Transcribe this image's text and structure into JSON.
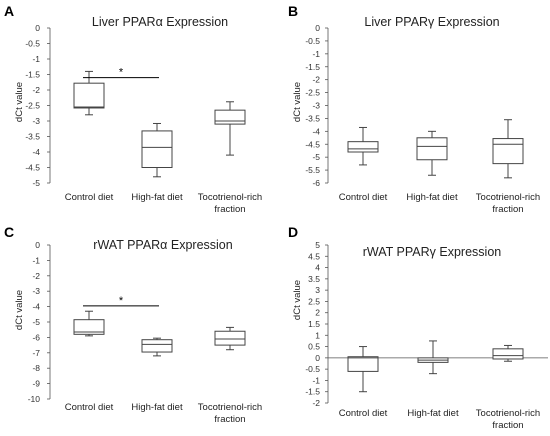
{
  "chart_data": [
    {
      "type": "box",
      "panel_label": "A",
      "title": "Liver PPARα Expression",
      "ylabel": "dCt value",
      "ylim": [
        -5,
        0
      ],
      "yticks": [
        "0",
        "-0.5",
        "-1",
        "-1.5",
        "-2",
        "-2.5",
        "-3",
        "-3.5",
        "-4",
        "-4.5",
        "-5"
      ],
      "categories": [
        "Control diet",
        "High-fat diet",
        "Tocotrienol-rich fraction"
      ],
      "boxes": [
        {
          "min": -2.8,
          "q1": -2.58,
          "median": -2.55,
          "q3": -1.78,
          "max": -1.4
        },
        {
          "min": -4.8,
          "q1": -4.5,
          "median": -3.85,
          "q3": -3.32,
          "max": -3.08
        },
        {
          "min": -4.1,
          "q1": -3.1,
          "median": -3.0,
          "q3": -2.65,
          "max": -2.38
        }
      ],
      "significance": {
        "from": 0,
        "to": 1,
        "y": -1.6,
        "label": "*"
      }
    },
    {
      "type": "box",
      "panel_label": "B",
      "title": "Liver PPARγ Expression",
      "ylabel": "dCt value",
      "ylim": [
        -6,
        0
      ],
      "yticks": [
        "0",
        "-0.5",
        "-1",
        "-1.5",
        "-2",
        "-2.5",
        "-3",
        "-3.5",
        "-4",
        "-4.5",
        "-5",
        "-5.5",
        "-6"
      ],
      "categories": [
        "Control diet",
        "High-fat diet",
        "Tocotrienol-rich fraction"
      ],
      "boxes": [
        {
          "min": -5.3,
          "q1": -4.8,
          "median": -4.68,
          "q3": -4.4,
          "max": -3.85
        },
        {
          "min": -5.7,
          "q1": -5.1,
          "median": -4.58,
          "q3": -4.25,
          "max": -4.0
        },
        {
          "min": -5.8,
          "q1": -5.25,
          "median": -4.5,
          "q3": -4.28,
          "max": -3.55
        }
      ]
    },
    {
      "type": "box",
      "panel_label": "C",
      "title": "rWAT PPARα Expression",
      "ylabel": "dCt value",
      "ylim": [
        -10,
        0
      ],
      "yticks": [
        "0",
        "-1",
        "-2",
        "-3",
        "-4",
        "-5",
        "-6",
        "-7",
        "-8",
        "-9",
        "-10"
      ],
      "categories": [
        "Control diet",
        "High-fat diet",
        "Tocotrienol-rich fraction"
      ],
      "boxes": [
        {
          "min": -5.9,
          "q1": -5.8,
          "median": -5.65,
          "q3": -4.85,
          "max": -4.3
        },
        {
          "min": -7.2,
          "q1": -6.95,
          "median": -6.45,
          "q3": -6.15,
          "max": -6.05
        },
        {
          "min": -6.8,
          "q1": -6.5,
          "median": -6.1,
          "q3": -5.6,
          "max": -5.35
        }
      ],
      "significance": {
        "from": 0,
        "to": 1,
        "y": -3.95,
        "label": "*"
      }
    },
    {
      "type": "box",
      "panel_label": "D",
      "title": "rWAT PPARγ Expression",
      "ylabel": "dCt value",
      "ylim": [
        -2,
        5
      ],
      "yticks": [
        "5",
        "4.5",
        "4",
        "3.5",
        "3",
        "2.5",
        "2",
        "1.5",
        "1",
        "0.5",
        "0",
        "-0.5",
        "-1",
        "-1.5",
        "-2"
      ],
      "categories": [
        "Control diet",
        "High-fat diet",
        "Tocotrienol-rich fraction"
      ],
      "boxes": [
        {
          "min": -1.5,
          "q1": -0.6,
          "median": 0.0,
          "q3": 0.05,
          "max": 0.5
        },
        {
          "min": -0.7,
          "q1": -0.2,
          "median": -0.1,
          "q3": 0.0,
          "max": 0.75
        },
        {
          "min": -0.15,
          "q1": -0.05,
          "median": 0.1,
          "q3": 0.4,
          "max": 0.55
        }
      ]
    }
  ],
  "colors": {
    "box_edge": "#444444",
    "box_fill": "#ffffff",
    "axis": "#555555",
    "text": "#222222"
  }
}
